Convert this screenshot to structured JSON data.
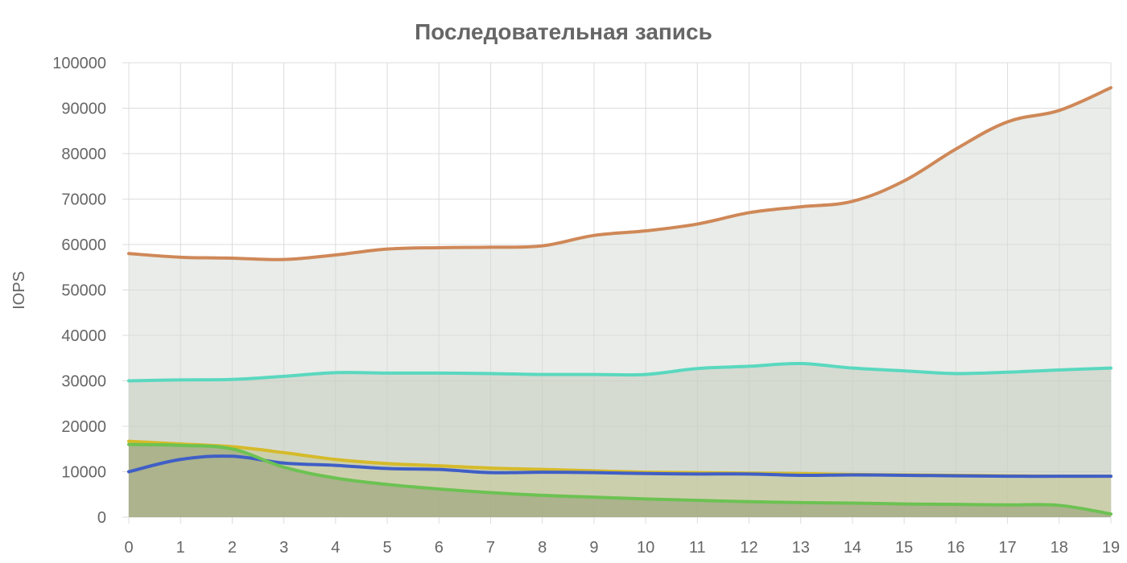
{
  "chart_data": {
    "type": "area",
    "title": "Последовательная запись",
    "xlabel": "",
    "ylabel": "IOPS",
    "x": [
      0,
      1,
      2,
      3,
      4,
      5,
      6,
      7,
      8,
      9,
      10,
      11,
      12,
      13,
      14,
      15,
      16,
      17,
      18,
      19
    ],
    "ylim": [
      0,
      100000
    ],
    "yticks": [
      0,
      10000,
      20000,
      30000,
      40000,
      50000,
      60000,
      70000,
      80000,
      90000,
      100000
    ],
    "grid": true,
    "series": [
      {
        "color": "#cf8858",
        "fill": "rgba(215,220,213,0.55)",
        "values": [
          58000,
          57200,
          57000,
          56700,
          57700,
          59000,
          59300,
          59400,
          59700,
          62000,
          63000,
          64500,
          67000,
          68300,
          69500,
          74000,
          81000,
          87000,
          89500,
          94500
        ]
      },
      {
        "color": "#5ad8bf",
        "fill": "rgba(190,200,185,0.45)",
        "values": [
          30000,
          30200,
          30300,
          31000,
          31800,
          31700,
          31700,
          31600,
          31400,
          31400,
          31400,
          32700,
          33200,
          33800,
          32800,
          32200,
          31600,
          31900,
          32400,
          32800
        ]
      },
      {
        "color": "#d5ba2a",
        "fill": "rgba(196,196,140,0.55)",
        "values": [
          16700,
          16100,
          15500,
          14200,
          12700,
          11800,
          11300,
          10800,
          10500,
          10200,
          9900,
          9800,
          9700,
          9600,
          9400,
          9300,
          9200,
          9100,
          9000,
          9000
        ]
      },
      {
        "color": "#3f5ec6",
        "fill": "rgba(0,0,0,0)",
        "values": [
          10000,
          12700,
          13400,
          11900,
          11400,
          10700,
          10500,
          9800,
          9900,
          9800,
          9600,
          9500,
          9500,
          9200,
          9300,
          9200,
          9100,
          9000,
          9000,
          9000
        ]
      },
      {
        "color": "#6cc252",
        "fill": "rgba(150,160,120,0.6)",
        "values": [
          16000,
          15800,
          15000,
          11000,
          8600,
          7200,
          6200,
          5400,
          4800,
          4400,
          4000,
          3700,
          3400,
          3200,
          3100,
          2900,
          2800,
          2700,
          2600,
          700
        ]
      }
    ]
  }
}
